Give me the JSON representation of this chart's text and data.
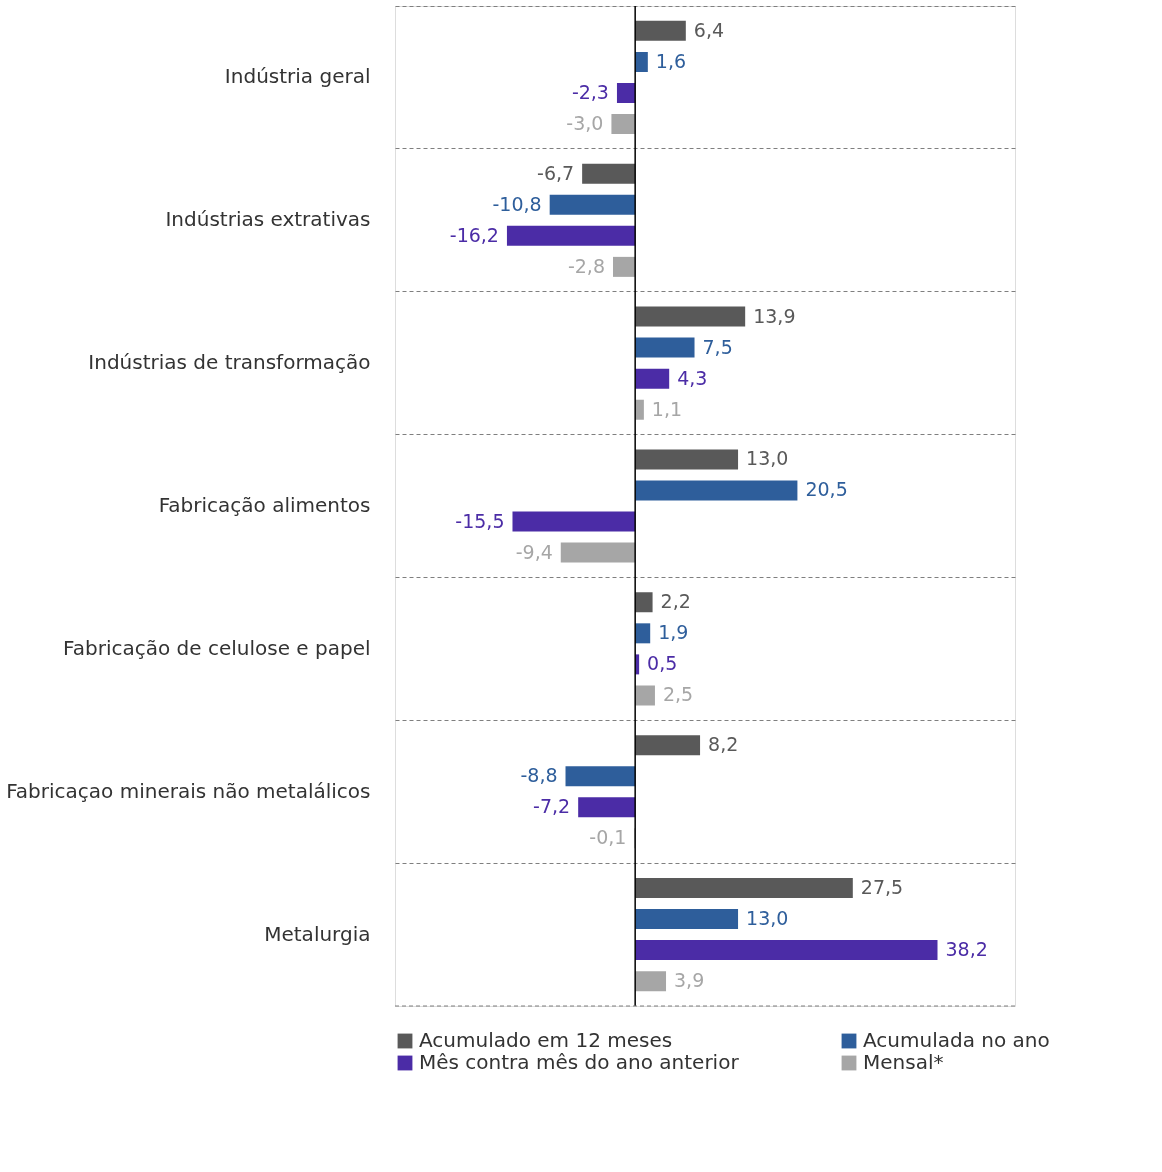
{
  "chart_data": {
    "type": "bar",
    "orientation": "horizontal",
    "grid": "y",
    "legend": "bottom",
    "categories": [
      "Indústria geral",
      "Indústrias extrativas",
      "Indústrias de transformação",
      "Fabricação alimentos",
      "Fabricação de celulose e papel",
      "Fabricaçao minerais não metalálicos",
      "Metalurgia"
    ],
    "series": [
      {
        "name": "Acumulado em 12 meses",
        "color": "#595959",
        "values": [
          6.4,
          -6.7,
          13.9,
          13.0,
          2.2,
          8.2,
          27.5
        ],
        "value_labels": [
          "6,4",
          "-6,7",
          "13,9",
          "13,0",
          "2,2",
          "8,2",
          "27,5"
        ]
      },
      {
        "name": "Acumulada no ano",
        "color": "#2e5e9b",
        "values": [
          1.6,
          -10.8,
          7.5,
          20.5,
          1.9,
          -8.8,
          13.0
        ],
        "value_labels": [
          "1,6",
          "-10,8",
          "7,5",
          "20,5",
          "1,9",
          "-8,8",
          "13,0"
        ]
      },
      {
        "name": "Mês contra mês do ano anterior",
        "color": "#4b2ca6",
        "values": [
          -2.3,
          -16.2,
          4.3,
          -15.5,
          0.5,
          -7.2,
          38.2
        ],
        "value_labels": [
          "-2,3",
          "-16,2",
          "4,3",
          "-15,5",
          "0,5",
          "-7,2",
          "38,2"
        ]
      },
      {
        "name": "Mensal*",
        "color": "#a6a6a6",
        "values": [
          -3.0,
          -2.8,
          1.1,
          -9.4,
          2.5,
          -0.1,
          3.9
        ],
        "value_labels": [
          "-3,0",
          "-2,8",
          "1,1",
          "-9,4",
          "2,5",
          "-0,1",
          "3,9"
        ]
      }
    ]
  }
}
